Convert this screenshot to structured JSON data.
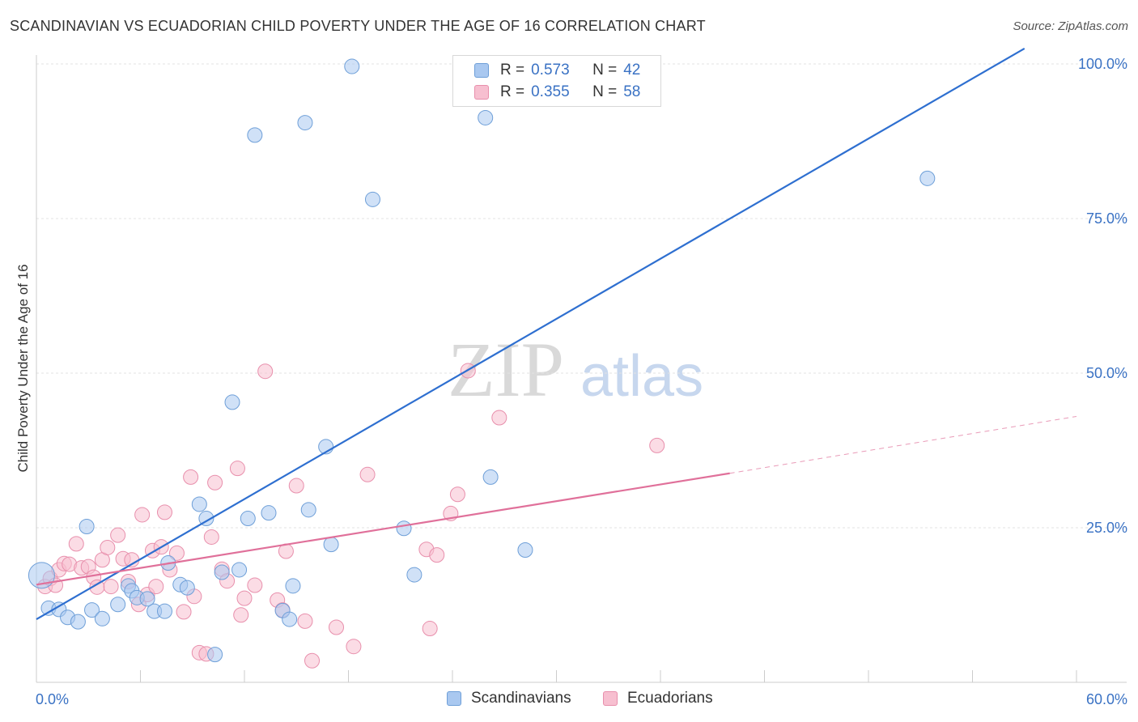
{
  "header": {
    "title": "SCANDINAVIAN VS ECUADORIAN CHILD POVERTY UNDER THE AGE OF 16 CORRELATION CHART",
    "source": "Source: ZipAtlas.com"
  },
  "watermark": {
    "part1": "ZIP",
    "part2": "atlas"
  },
  "legend": {
    "rows": [
      {
        "r_key": "R =",
        "r_value": "0.573",
        "n_key": "N =",
        "n_value": "42",
        "color": "#a9c8f0",
        "border": "#6e9fd8"
      },
      {
        "r_key": "R =",
        "r_value": "0.355",
        "n_key": "N =",
        "n_value": "58",
        "color": "#f7bfd0",
        "border": "#e88fac"
      }
    ],
    "bottom": [
      {
        "label": "Scandinavians",
        "color": "#a9c8f0",
        "border": "#6e9fd8"
      },
      {
        "label": "Ecuadorians",
        "color": "#f7bfd0",
        "border": "#e88fac"
      }
    ]
  },
  "chart_data": {
    "type": "scatter",
    "title": "SCANDINAVIAN VS ECUADORIAN CHILD POVERTY UNDER THE AGE OF 16 CORRELATION CHART",
    "xlabel": "",
    "ylabel": "Child Poverty Under the Age of 16",
    "xlim": [
      0,
      60
    ],
    "ylim": [
      0,
      100
    ],
    "x_tick_labels": [
      "0.0%",
      "60.0%"
    ],
    "y_ticks": [
      25,
      50,
      75,
      100
    ],
    "y_tick_labels": [
      "25.0%",
      "50.0%",
      "75.0%",
      "100.0%"
    ],
    "grid": true,
    "legend_position": "top-center",
    "series": [
      {
        "name": "Scandinavians",
        "color": "#6e9fd8",
        "fill": "#a9c8f0",
        "R": 0.573,
        "N": 42,
        "trend": {
          "x": [
            0,
            57
          ],
          "y": [
            10.2,
            102.5
          ],
          "color": "#2e6fd0"
        },
        "points": [
          [
            0.3,
            17.3
          ],
          [
            0.7,
            12.0
          ],
          [
            1.3,
            11.8
          ],
          [
            1.8,
            10.5
          ],
          [
            2.4,
            9.8
          ],
          [
            3.2,
            11.7
          ],
          [
            3.8,
            10.3
          ],
          [
            4.7,
            12.6
          ],
          [
            5.3,
            15.6
          ],
          [
            5.5,
            14.8
          ],
          [
            5.8,
            13.7
          ],
          [
            6.4,
            13.5
          ],
          [
            6.8,
            11.5
          ],
          [
            7.4,
            11.5
          ],
          [
            7.6,
            19.3
          ],
          [
            8.3,
            15.8
          ],
          [
            8.7,
            15.3
          ],
          [
            9.4,
            28.8
          ],
          [
            9.8,
            26.5
          ],
          [
            10.3,
            4.5
          ],
          [
            10.7,
            17.8
          ],
          [
            11.3,
            45.3
          ],
          [
            11.7,
            18.2
          ],
          [
            12.2,
            26.5
          ],
          [
            12.6,
            88.5
          ],
          [
            13.4,
            27.4
          ],
          [
            14.2,
            11.6
          ],
          [
            14.6,
            10.2
          ],
          [
            14.8,
            15.6
          ],
          [
            15.5,
            90.5
          ],
          [
            15.7,
            27.9
          ],
          [
            16.7,
            38.1
          ],
          [
            17.0,
            22.3
          ],
          [
            18.2,
            99.6
          ],
          [
            19.4,
            78.1
          ],
          [
            21.2,
            24.9
          ],
          [
            21.8,
            17.4
          ],
          [
            25.9,
            91.3
          ],
          [
            26.2,
            33.2
          ],
          [
            28.2,
            21.4
          ],
          [
            51.4,
            81.5
          ],
          [
            2.9,
            25.2
          ]
        ]
      },
      {
        "name": "Ecuadorians",
        "color": "#e88fac",
        "fill": "#f7bfd0",
        "R": 0.355,
        "N": 58,
        "trend": {
          "x": [
            0,
            40
          ],
          "y": [
            15.8,
            33.8
          ],
          "color": "#e0709a"
        },
        "trend_extension": {
          "x": [
            40,
            60
          ],
          "y": [
            33.8,
            43.0
          ]
        },
        "points": [
          [
            0.5,
            15.5
          ],
          [
            0.8,
            16.8
          ],
          [
            1.1,
            15.7
          ],
          [
            1.3,
            18.2
          ],
          [
            1.6,
            19.2
          ],
          [
            1.9,
            19.1
          ],
          [
            2.3,
            22.4
          ],
          [
            2.6,
            18.5
          ],
          [
            3.0,
            18.7
          ],
          [
            3.3,
            17.0
          ],
          [
            3.5,
            15.4
          ],
          [
            3.8,
            19.8
          ],
          [
            4.1,
            21.8
          ],
          [
            4.3,
            15.5
          ],
          [
            4.7,
            23.8
          ],
          [
            5.0,
            20.0
          ],
          [
            5.3,
            16.3
          ],
          [
            5.5,
            19.8
          ],
          [
            5.9,
            12.6
          ],
          [
            6.1,
            27.1
          ],
          [
            6.4,
            14.2
          ],
          [
            6.7,
            21.3
          ],
          [
            6.9,
            15.5
          ],
          [
            7.2,
            21.9
          ],
          [
            7.4,
            27.5
          ],
          [
            7.7,
            18.2
          ],
          [
            8.1,
            20.9
          ],
          [
            8.5,
            11.4
          ],
          [
            8.9,
            33.2
          ],
          [
            9.1,
            13.9
          ],
          [
            9.4,
            4.8
          ],
          [
            9.8,
            4.6
          ],
          [
            10.1,
            23.5
          ],
          [
            10.3,
            32.3
          ],
          [
            10.7,
            18.3
          ],
          [
            11.0,
            16.4
          ],
          [
            11.6,
            34.6
          ],
          [
            11.8,
            10.9
          ],
          [
            12.0,
            13.6
          ],
          [
            12.6,
            15.7
          ],
          [
            13.2,
            50.3
          ],
          [
            13.9,
            13.3
          ],
          [
            14.2,
            11.7
          ],
          [
            14.4,
            21.2
          ],
          [
            15.0,
            31.8
          ],
          [
            15.5,
            9.9
          ],
          [
            15.9,
            3.5
          ],
          [
            17.3,
            8.9
          ],
          [
            18.3,
            5.8
          ],
          [
            19.1,
            33.6
          ],
          [
            22.5,
            21.5
          ],
          [
            22.7,
            8.7
          ],
          [
            23.1,
            20.6
          ],
          [
            23.9,
            27.3
          ],
          [
            24.3,
            30.4
          ],
          [
            24.9,
            50.4
          ],
          [
            26.7,
            42.8
          ],
          [
            35.8,
            38.3
          ]
        ]
      }
    ]
  }
}
